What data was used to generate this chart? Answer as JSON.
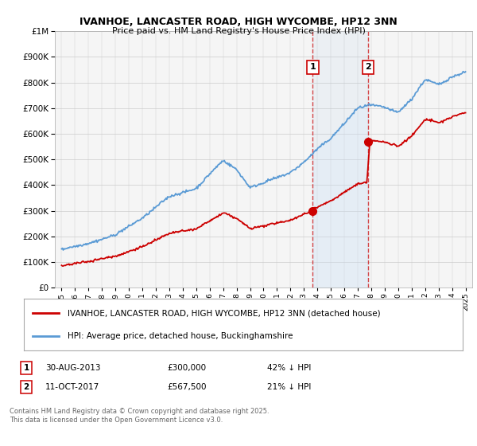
{
  "title": "IVANHOE, LANCASTER ROAD, HIGH WYCOMBE, HP12 3NN",
  "subtitle": "Price paid vs. HM Land Registry's House Price Index (HPI)",
  "hpi_color": "#5b9bd5",
  "hpi_fill_color": "#ddeeff",
  "price_color": "#cc0000",
  "purchase1_date": 2013.66,
  "purchase1_price": 300000,
  "purchase1_label": "1",
  "purchase2_date": 2017.78,
  "purchase2_price": 567500,
  "purchase2_label": "2",
  "ylim_min": 0,
  "ylim_max": 1000000,
  "xlim_min": 1994.5,
  "xlim_max": 2025.5,
  "legend_line1": "IVANHOE, LANCASTER ROAD, HIGH WYCOMBE, HP12 3NN (detached house)",
  "legend_line2": "HPI: Average price, detached house, Buckinghamshire",
  "note1_box": "1",
  "note1_date": "30-AUG-2013",
  "note1_price": "£300,000",
  "note1_pct": "42% ↓ HPI",
  "note2_box": "2",
  "note2_date": "11-OCT-2017",
  "note2_price": "£567,500",
  "note2_pct": "21% ↓ HPI",
  "footer": "Contains HM Land Registry data © Crown copyright and database right 2025.\nThis data is licensed under the Open Government Licence v3.0."
}
